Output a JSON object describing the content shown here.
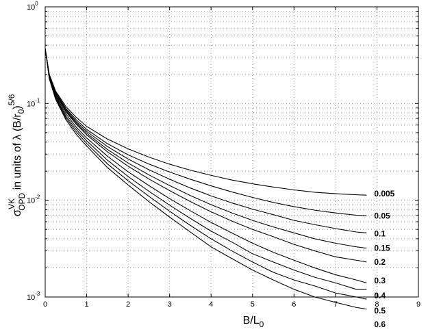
{
  "chart_data": {
    "type": "line",
    "title": "",
    "xlabel": {
      "main": "B/L",
      "sub": "0"
    },
    "ylabel": {
      "sigma": "σ",
      "sigma_sup": "VK",
      "sigma_sub": "OPD",
      "middle": " in units of λ (B/r",
      "r_sub": "0",
      "close": ")",
      "exp_sup": "5/6"
    },
    "xlim": [
      0,
      9
    ],
    "ylim": [
      0.001,
      1
    ],
    "yscale": "log",
    "grid": true,
    "grid_style": "dotted",
    "x_ticks": [
      {
        "value": 0,
        "label": "0"
      },
      {
        "value": 1,
        "label": "1"
      },
      {
        "value": 2,
        "label": "2"
      },
      {
        "value": 3,
        "label": "3"
      },
      {
        "value": 4,
        "label": "4"
      },
      {
        "value": 5,
        "label": "5"
      },
      {
        "value": 6,
        "label": "6"
      },
      {
        "value": 7,
        "label": "7"
      },
      {
        "value": 8,
        "label": "8"
      },
      {
        "value": 9,
        "label": "9"
      }
    ],
    "y_ticks": [
      {
        "value": 0.001,
        "base": "10",
        "exp": "-3"
      },
      {
        "value": 0.01,
        "base": "10",
        "exp": "-2"
      },
      {
        "value": 0.1,
        "base": "10",
        "exp": "-1"
      },
      {
        "value": 1,
        "base": "10",
        "exp": "0"
      }
    ],
    "x": [
      0,
      0.1,
      0.25,
      0.5,
      0.75,
      1,
      1.5,
      2,
      2.5,
      3,
      3.5,
      4,
      4.5,
      5,
      5.5,
      6,
      6.5,
      7,
      7.5,
      7.75
    ],
    "series": [
      {
        "name": "0.005",
        "color": "#000000",
        "values": [
          0.37,
          0.2,
          0.135,
          0.093,
          0.072,
          0.058,
          0.043,
          0.034,
          0.028,
          0.0236,
          0.0205,
          0.0181,
          0.0162,
          0.0148,
          0.0137,
          0.0128,
          0.0121,
          0.0117,
          0.0114,
          0.0113
        ]
      },
      {
        "name": "0.05",
        "color": "#000000",
        "values": [
          0.37,
          0.198,
          0.132,
          0.089,
          0.068,
          0.054,
          0.0385,
          0.0295,
          0.0237,
          0.0196,
          0.0165,
          0.0141,
          0.0122,
          0.0107,
          0.0095,
          0.0086,
          0.0079,
          0.0074,
          0.007,
          0.0069
        ]
      },
      {
        "name": "0.1",
        "color": "#000000",
        "values": [
          0.37,
          0.196,
          0.13,
          0.087,
          0.065,
          0.0515,
          0.036,
          0.0267,
          0.0207,
          0.0165,
          0.0134,
          0.0111,
          0.0094,
          0.0081,
          0.0071,
          0.0062,
          0.0056,
          0.0051,
          0.0047,
          0.0046
        ]
      },
      {
        "name": "0.15",
        "color": "#000000",
        "values": [
          0.37,
          0.194,
          0.128,
          0.084,
          0.063,
          0.0493,
          0.0336,
          0.0243,
          0.0183,
          0.0142,
          0.0112,
          0.009,
          0.0074,
          0.0062,
          0.0053,
          0.0046,
          0.004,
          0.0036,
          0.0033,
          0.0032
        ]
      },
      {
        "name": "0.2",
        "color": "#000000",
        "values": [
          0.37,
          0.192,
          0.126,
          0.082,
          0.061,
          0.0475,
          0.0317,
          0.0225,
          0.0166,
          0.0126,
          0.0097,
          0.0076,
          0.0061,
          0.005,
          0.0042,
          0.0035,
          0.003,
          0.0026,
          0.0024,
          0.0023
        ]
      },
      {
        "name": "0.3",
        "color": "#000000",
        "values": [
          0.37,
          0.188,
          0.122,
          0.078,
          0.057,
          0.0441,
          0.0286,
          0.0197,
          0.0142,
          0.0104,
          0.0078,
          0.0059,
          0.0046,
          0.0036,
          0.0029,
          0.0024,
          0.002,
          0.0017,
          0.0015,
          0.0014
        ]
      },
      {
        "name": "0.4",
        "color": "#000000",
        "values": [
          0.37,
          0.185,
          0.118,
          0.074,
          0.054,
          0.0412,
          0.026,
          0.0176,
          0.0124,
          0.0089,
          0.0065,
          0.0048,
          0.0037,
          0.0028,
          0.0023,
          0.0019,
          0.0016,
          0.0014,
          0.0012,
          0.0012
        ]
      },
      {
        "name": "0.5",
        "color": "#000000",
        "values": [
          0.37,
          0.182,
          0.114,
          0.071,
          0.051,
          0.0387,
          0.0238,
          0.0159,
          0.011,
          0.0077,
          0.0055,
          0.004,
          0.003,
          0.0023,
          0.0018,
          0.0015,
          0.0013,
          0.0011,
          0.001,
          0.00095
        ]
      },
      {
        "name": "0.6",
        "color": "#000000",
        "values": [
          0.37,
          0.179,
          0.111,
          0.068,
          0.048,
          0.0364,
          0.0218,
          0.0144,
          0.0097,
          0.0067,
          0.0047,
          0.0033,
          0.0025,
          0.0019,
          0.0015,
          0.0012,
          0.001,
          0.00088,
          0.00078,
          0.00075
        ]
      }
    ],
    "label_positions": [
      {
        "name": "0.005",
        "x": 7.8,
        "y": 0.0117
      },
      {
        "name": "0.05",
        "x": 7.8,
        "y": 0.0069
      },
      {
        "name": "0.1",
        "x": 7.8,
        "y": 0.0045
      },
      {
        "name": "0.15",
        "x": 7.8,
        "y": 0.0032
      },
      {
        "name": "0.2",
        "x": 7.8,
        "y": 0.0023
      },
      {
        "name": "0.3",
        "x": 7.8,
        "y": 0.00148
      },
      {
        "name": "0.4",
        "x": 7.8,
        "y": 0.00103
      },
      {
        "name": "0.5",
        "x": 7.8,
        "y": 0.00072
      },
      {
        "name": "0.6",
        "x": 7.8,
        "y": 0.00052
      }
    ]
  }
}
